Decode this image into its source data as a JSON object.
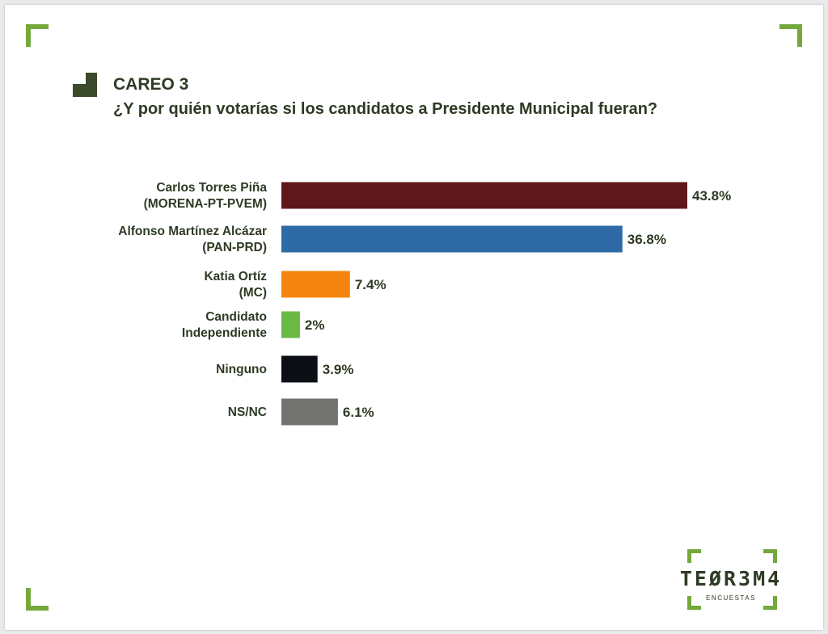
{
  "header": {
    "title": "CAREO 3",
    "subtitle": "¿Y por quién votarías si los candidatos a Presidente Municipal fueran?"
  },
  "chart_data": {
    "type": "bar",
    "orientation": "horizontal",
    "categories": [
      [
        "Carlos Torres Piña",
        "(MORENA-PT-PVEM)"
      ],
      [
        "Alfonso Martínez Alcázar",
        "(PAN-PRD)"
      ],
      [
        "Katia Ortíz",
        "(MC)"
      ],
      [
        "Candidato",
        "Independiente"
      ],
      [
        "Ninguno"
      ],
      [
        "NS/NC"
      ]
    ],
    "values": [
      43.8,
      36.8,
      7.4,
      2,
      3.9,
      6.1
    ],
    "value_labels": [
      "43.8%",
      "36.8%",
      "7.4%",
      "2%",
      "3.9%",
      "6.1%"
    ],
    "colors": [
      "#5e181b",
      "#2e6aa6",
      "#f5850f",
      "#6ab845",
      "#0b0e14",
      "#727370"
    ],
    "xlim": [
      0,
      43.8
    ],
    "grid": false,
    "legend": "none"
  },
  "logo": {
    "word": "TEØR3M4",
    "sub": "ENCUESTAS"
  }
}
